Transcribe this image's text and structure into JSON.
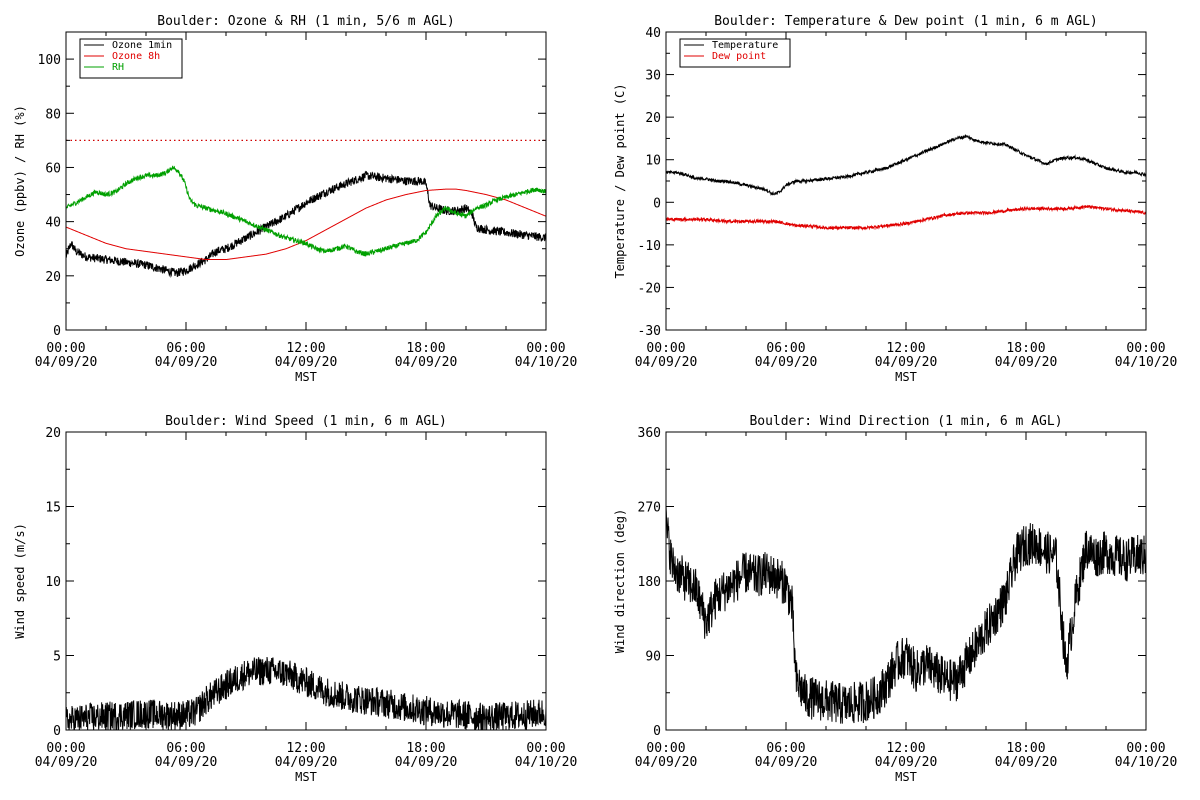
{
  "chart_data": [
    {
      "type": "line",
      "title": "Boulder: Ozone & RH (1 min, 5/6 m AGL)",
      "xlabel": "MST",
      "ylabel": "Ozone (ppbv) / RH (%)",
      "xlim": [
        0,
        24
      ],
      "ylim": [
        0,
        110
      ],
      "yticks": [
        0,
        20,
        40,
        60,
        80,
        100
      ],
      "xtick_labels": [
        [
          "00:00",
          "04/09/20"
        ],
        [
          "06:00",
          "04/09/20"
        ],
        [
          "12:00",
          "04/09/20"
        ],
        [
          "18:00",
          "04/09/20"
        ],
        [
          "00:00",
          "04/10/20"
        ]
      ],
      "legend": "top-left",
      "reference_line": {
        "y": 70,
        "style": "dotted",
        "color": "#d00000"
      },
      "series": [
        {
          "name": "Ozone 1min",
          "color": "#000000",
          "noise": 1.6,
          "x": [
            0,
            0.25,
            0.5,
            1,
            2,
            3,
            4,
            5,
            5.5,
            6,
            6.5,
            7,
            7.5,
            8,
            9,
            10,
            11,
            12,
            13,
            14,
            15,
            16,
            17,
            17.8,
            18,
            18.2,
            18.5,
            19,
            19.5,
            20,
            20.3,
            20.5,
            21,
            22,
            23,
            24
          ],
          "y": [
            27,
            32,
            29,
            27,
            26,
            25,
            24,
            22,
            21,
            22,
            24,
            26,
            29,
            30,
            34,
            38,
            42,
            47,
            51,
            54,
            57,
            56,
            55,
            55,
            54,
            46,
            45,
            44,
            44,
            45,
            43,
            38,
            37,
            36,
            35,
            34
          ]
        },
        {
          "name": "Ozone 8h",
          "color": "#e00000",
          "noise": 0,
          "x": [
            0,
            1,
            2,
            3,
            4,
            5,
            6,
            7,
            8,
            9,
            10,
            11,
            12,
            13,
            14,
            15,
            16,
            17,
            18,
            19,
            19.5,
            20,
            21,
            22,
            23,
            24
          ],
          "y": [
            38,
            35,
            32,
            30,
            29,
            28,
            27,
            26,
            26,
            27,
            28,
            30,
            33,
            37,
            41,
            45,
            48,
            50,
            51.5,
            52,
            52,
            51.5,
            50,
            48,
            45,
            42
          ]
        },
        {
          "name": "RH",
          "color": "#00a000",
          "noise": 0.9,
          "x": [
            0,
            0.5,
            1,
            1.5,
            2,
            2.5,
            3,
            3.5,
            4,
            4.5,
            5,
            5.3,
            5.6,
            5.9,
            6.2,
            6.5,
            7,
            8,
            9,
            10,
            11,
            12,
            12.5,
            13,
            13.5,
            14,
            14.5,
            15,
            16,
            17,
            17.5,
            18,
            18.5,
            19,
            19.5,
            20,
            20.5,
            21,
            21.5,
            22,
            22.5,
            23,
            23.5,
            24
          ],
          "y": [
            45,
            47,
            49,
            51,
            50,
            51,
            54,
            56,
            57,
            57,
            58,
            60,
            59,
            55,
            48,
            46,
            45,
            43,
            40,
            37,
            34,
            32,
            30,
            29,
            30,
            31,
            29,
            28,
            30,
            32,
            33,
            36,
            42,
            45,
            43,
            42,
            45,
            46,
            48,
            49,
            50,
            51,
            52,
            51
          ]
        }
      ]
    },
    {
      "type": "line",
      "title": "Boulder: Temperature & Dew point (1 min, 6 m AGL)",
      "xlabel": "MST",
      "ylabel": "Temperature / Dew point (C)",
      "xlim": [
        0,
        24
      ],
      "ylim": [
        -30,
        40
      ],
      "yticks": [
        -30,
        -20,
        -10,
        0,
        10,
        20,
        30,
        40
      ],
      "xtick_labels": [
        [
          "00:00",
          "04/09/20"
        ],
        [
          "06:00",
          "04/09/20"
        ],
        [
          "12:00",
          "04/09/20"
        ],
        [
          "18:00",
          "04/09/20"
        ],
        [
          "00:00",
          "04/10/20"
        ]
      ],
      "legend": "top-left",
      "series": [
        {
          "name": "Temperature",
          "color": "#000000",
          "noise": 0.35,
          "x": [
            0,
            0.5,
            1,
            1.5,
            2,
            2.5,
            3,
            3.5,
            4,
            4.5,
            5,
            5.3,
            5.5,
            5.7,
            6,
            6.5,
            7,
            8,
            9,
            10,
            11,
            12,
            13,
            14,
            14.5,
            15,
            15.5,
            16,
            17,
            18,
            18.5,
            19,
            19.5,
            20,
            20.5,
            21,
            21.5,
            22,
            22.5,
            23,
            23.5,
            24
          ],
          "y": [
            7,
            7,
            6.5,
            5.5,
            5.5,
            5,
            5,
            4.5,
            4,
            3.5,
            3,
            2,
            2,
            2.5,
            4,
            5,
            5,
            5.5,
            6,
            7,
            8,
            10,
            12,
            14,
            15,
            15.5,
            14.5,
            14,
            13.5,
            11,
            10,
            9,
            10,
            10.5,
            10.5,
            10,
            9,
            8,
            7.5,
            7,
            7,
            6.5
          ]
        },
        {
          "name": "Dew point",
          "color": "#e00000",
          "noise": 0.35,
          "x": [
            0,
            1,
            2,
            3,
            4,
            5,
            5.5,
            6,
            6.5,
            7,
            8,
            9,
            10,
            11,
            12,
            13,
            14,
            15,
            16,
            17,
            18,
            19,
            20,
            21,
            22,
            23,
            24
          ],
          "y": [
            -4,
            -4,
            -4,
            -4.5,
            -4.5,
            -4.5,
            -4.5,
            -5,
            -5.5,
            -5.5,
            -6,
            -6,
            -6,
            -5.5,
            -5,
            -4,
            -3,
            -2.5,
            -2.5,
            -2,
            -1.5,
            -1.5,
            -1.5,
            -1,
            -1.5,
            -2,
            -2.5
          ]
        }
      ]
    },
    {
      "type": "line",
      "title": "Boulder: Wind Speed (1 min, 6 m AGL)",
      "xlabel": "MST",
      "ylabel": "Wind speed (m/s)",
      "xlim": [
        0,
        24
      ],
      "ylim": [
        0,
        20
      ],
      "yticks": [
        0,
        5,
        10,
        15,
        20
      ],
      "xtick_labels": [
        [
          "00:00",
          "04/09/20"
        ],
        [
          "06:00",
          "04/09/20"
        ],
        [
          "12:00",
          "04/09/20"
        ],
        [
          "18:00",
          "04/09/20"
        ],
        [
          "00:00",
          "04/10/20"
        ]
      ],
      "legend": "none",
      "series": [
        {
          "name": "",
          "color": "#000000",
          "noise": 1.0,
          "floor": 0,
          "x": [
            0,
            1,
            2,
            3,
            4,
            5,
            6,
            6.5,
            7,
            8,
            9,
            10,
            11,
            12,
            13,
            14,
            15,
            16,
            17,
            18,
            19,
            20,
            21,
            22,
            23,
            24
          ],
          "y": [
            0.6,
            0.8,
            0.9,
            1,
            1.1,
            1,
            1,
            1.2,
            2,
            3,
            3.8,
            4,
            3.8,
            3.2,
            2.6,
            2.2,
            2,
            1.8,
            1.5,
            1.3,
            1.1,
            1,
            0.8,
            0.9,
            1,
            1.2
          ]
        }
      ]
    },
    {
      "type": "line",
      "title": "Boulder: Wind Direction (1 min, 6 m AGL)",
      "xlabel": "MST",
      "ylabel": "Wind direction (deg)",
      "xlim": [
        0,
        24
      ],
      "ylim": [
        0,
        360
      ],
      "yticks": [
        0,
        90,
        180,
        270,
        360
      ],
      "xtick_labels": [
        [
          "00:00",
          "04/09/20"
        ],
        [
          "06:00",
          "04/09/20"
        ],
        [
          "12:00",
          "04/09/20"
        ],
        [
          "18:00",
          "04/09/20"
        ],
        [
          "00:00",
          "04/10/20"
        ]
      ],
      "legend": "none",
      "series": [
        {
          "name": "",
          "color": "#000000",
          "noise": 26,
          "floor": 0,
          "ceil": 360,
          "x": [
            0,
            0.3,
            0.6,
            1,
            1.5,
            2,
            2.5,
            3,
            3.5,
            4,
            4.5,
            5,
            5.5,
            6,
            6.3,
            6.5,
            7,
            8,
            9,
            10,
            10.5,
            11,
            11.5,
            12,
            12.5,
            13,
            13.5,
            14,
            14.5,
            15,
            15.5,
            16,
            16.5,
            17,
            17.5,
            18,
            18.5,
            19,
            19.5,
            20,
            20.5,
            21,
            21.5,
            22,
            22.5,
            23,
            23.5,
            24
          ],
          "y": [
            250,
            200,
            190,
            180,
            170,
            130,
            160,
            170,
            180,
            190,
            185,
            190,
            185,
            175,
            150,
            60,
            40,
            35,
            30,
            35,
            40,
            55,
            80,
            90,
            70,
            80,
            70,
            60,
            60,
            80,
            100,
            120,
            140,
            160,
            210,
            225,
            225,
            215,
            210,
            75,
            160,
            220,
            210,
            215,
            210,
            205,
            210,
            210
          ]
        }
      ]
    }
  ]
}
